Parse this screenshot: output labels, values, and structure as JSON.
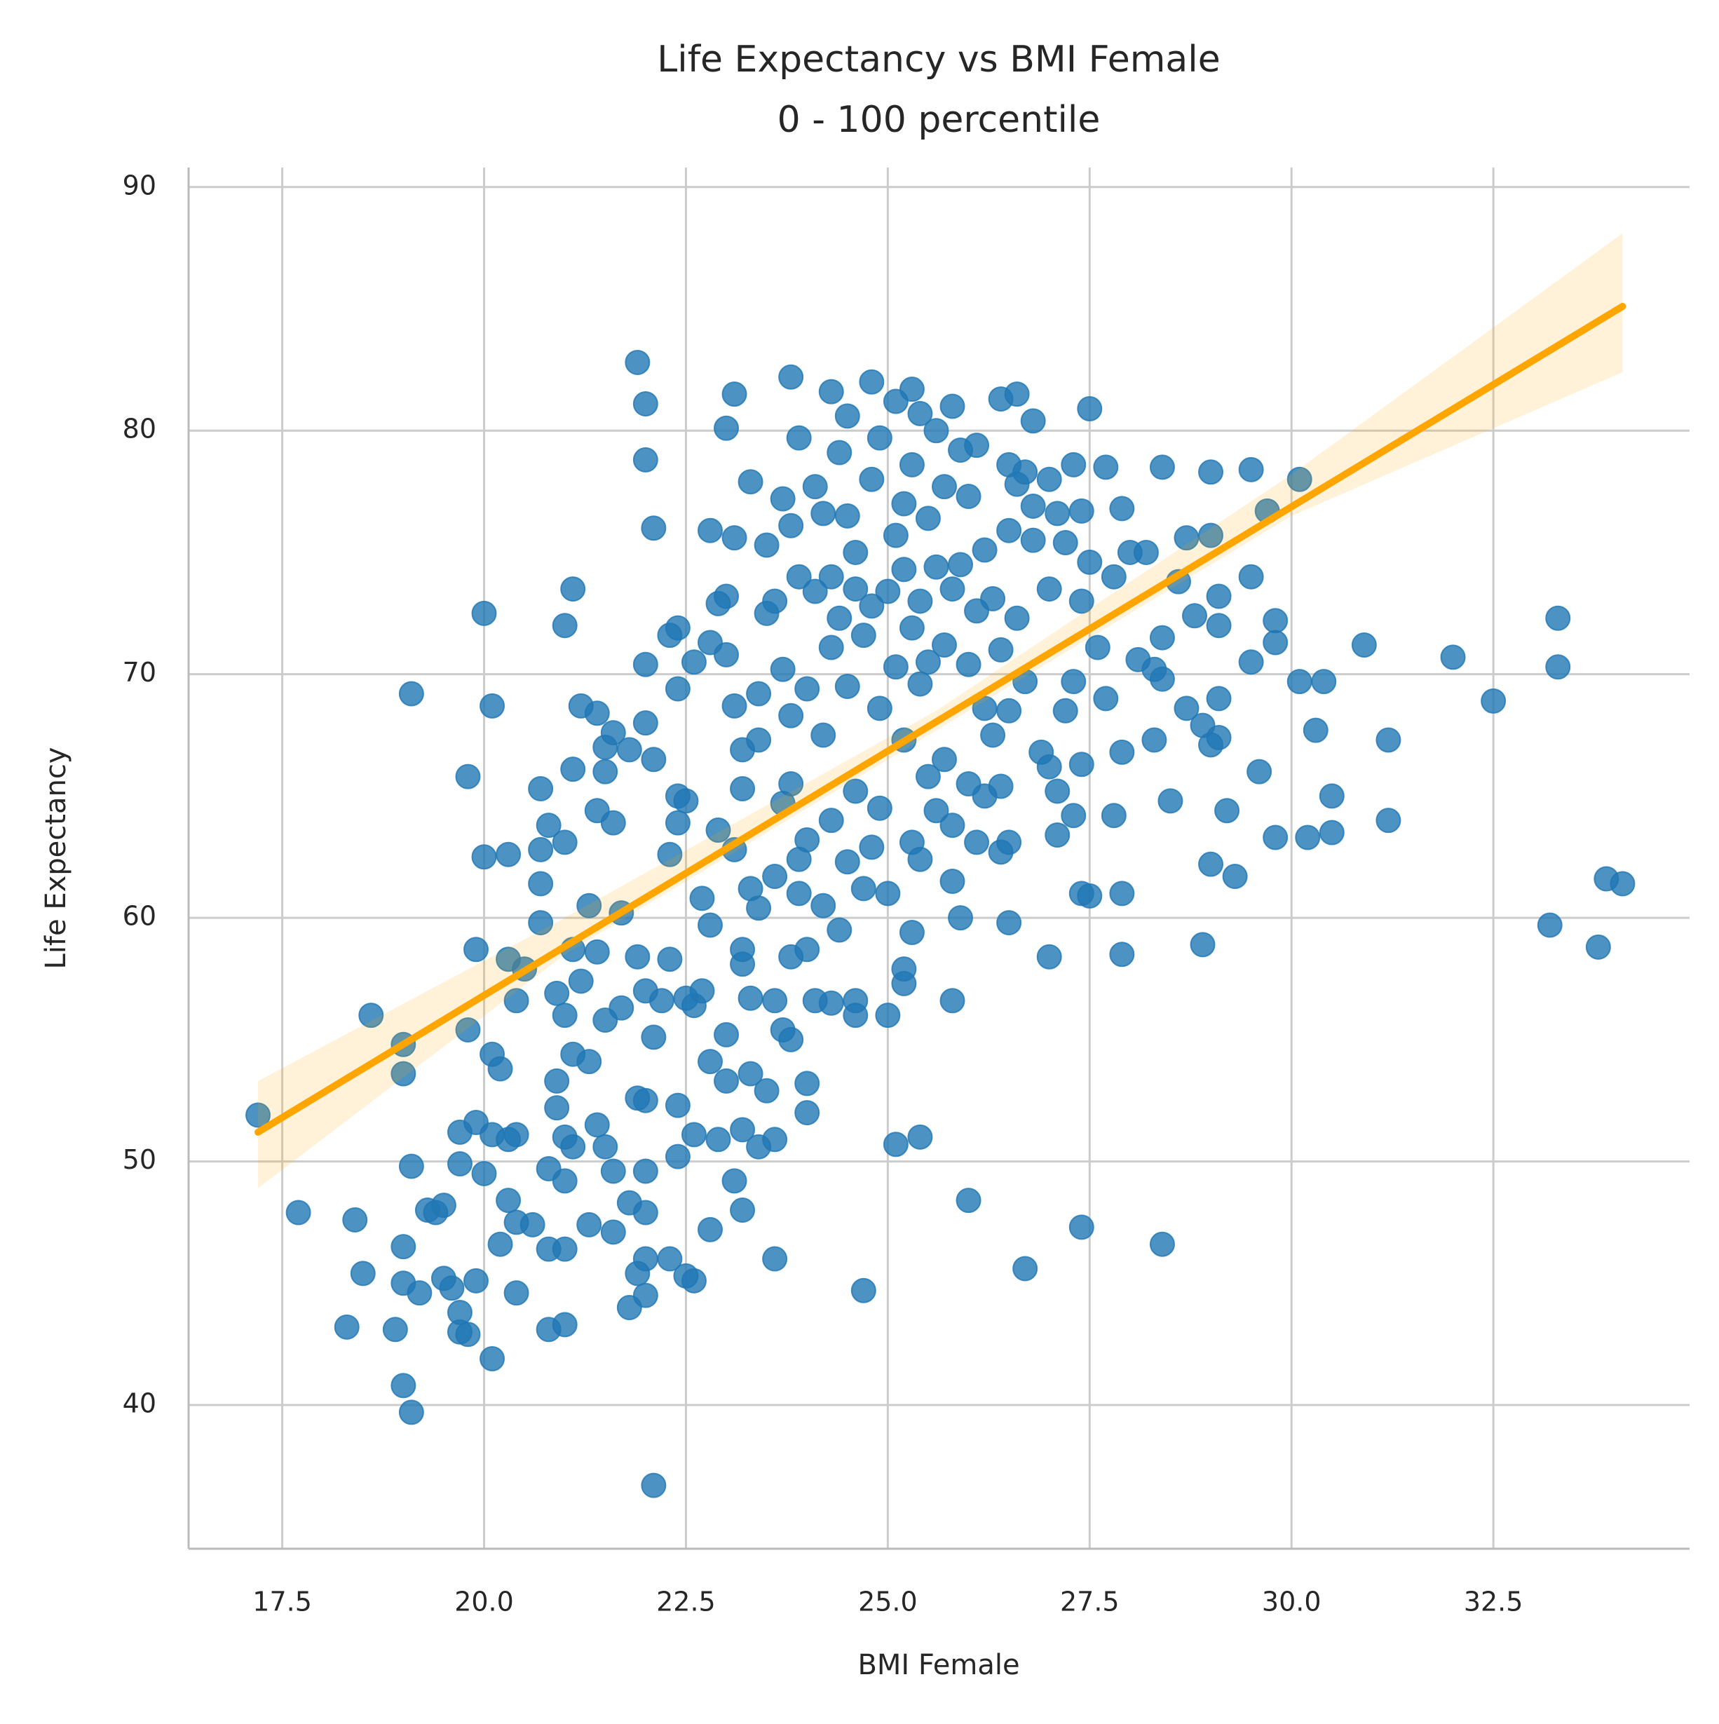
{
  "chart_data": {
    "type": "scatter",
    "title": "Life Expectancy vs BMI Female",
    "subtitle": "0 - 100 percentile",
    "x_label": "BMI Female",
    "y_label": "Life Expectancy",
    "color": "#1f77b4",
    "grid": true,
    "xlim": [
      16.34,
      34.93
    ],
    "ylim": [
      34.1,
      90.8
    ],
    "xticks": [
      17.5,
      {
        "value": 20,
        "label": "20.0"
      },
      22.5,
      {
        "value": 25,
        "label": "25.0"
      },
      27.5,
      {
        "value": 30,
        "label": "30.0"
      },
      32.5
    ],
    "yticks": [
      40,
      50,
      60,
      70,
      80,
      90
    ],
    "x": [
      17.2,
      17.7,
      18.4,
      18.5,
      18.3,
      18.6,
      19.0,
      19.0,
      19.1,
      19.0,
      19.0,
      18.9,
      19.0,
      19.1,
      19.1,
      19.2,
      19.3,
      19.4,
      19.5,
      19.5,
      19.6,
      19.7,
      19.7,
      19.7,
      19.7,
      19.8,
      19.8,
      19.8,
      19.9,
      19.9,
      19.9,
      20.0,
      20.0,
      20.0,
      20.1,
      20.1,
      20.1,
      20.1,
      20.2,
      20.2,
      20.3,
      20.3,
      20.3,
      20.3,
      20.4,
      20.4,
      20.4,
      20.4,
      20.5,
      20.6,
      20.7,
      20.7,
      20.7,
      20.7,
      20.8,
      20.8,
      20.8,
      20.8,
      20.9,
      20.9,
      20.9,
      21.0,
      21.0,
      21.0,
      21.0,
      21.0,
      21.0,
      21.0,
      21.1,
      21.1,
      21.1,
      21.1,
      21.1,
      21.2,
      21.2,
      21.3,
      21.3,
      21.3,
      21.4,
      21.4,
      21.4,
      21.4,
      21.5,
      21.5,
      21.5,
      21.5,
      21.6,
      21.6,
      21.6,
      21.6,
      21.7,
      21.7,
      21.8,
      21.8,
      21.8,
      21.9,
      21.9,
      21.9,
      21.9,
      22.0,
      22.0,
      22.0,
      22.0,
      22.0,
      22.0,
      22.0,
      22.0,
      22.0,
      22.0,
      22.1,
      22.1,
      22.1,
      22.1,
      22.2,
      22.3,
      22.3,
      22.3,
      22.3,
      22.4,
      22.4,
      22.4,
      22.4,
      22.4,
      22.4,
      22.5,
      22.5,
      22.5,
      22.6,
      22.6,
      22.6,
      22.6,
      22.7,
      22.7,
      22.8,
      22.8,
      22.8,
      22.8,
      22.8,
      22.9,
      22.9,
      22.9,
      23.0,
      23.0,
      23.0,
      23.0,
      23.0,
      23.1,
      23.1,
      23.1,
      23.1,
      23.1,
      23.2,
      23.2,
      23.2,
      23.2,
      23.2,
      23.2,
      23.3,
      23.3,
      23.3,
      23.3,
      23.4,
      23.4,
      23.4,
      23.4,
      23.5,
      23.5,
      23.5,
      23.6,
      23.6,
      23.6,
      23.6,
      23.6,
      23.7,
      23.7,
      23.7,
      23.7,
      23.8,
      23.8,
      23.8,
      23.8,
      23.8,
      23.8,
      23.9,
      23.9,
      23.9,
      23.9,
      24.0,
      24.0,
      24.0,
      24.0,
      24.0,
      24.1,
      24.1,
      24.1,
      24.2,
      24.2,
      24.2,
      24.3,
      24.3,
      24.3,
      24.3,
      24.3,
      24.4,
      24.4,
      24.4,
      24.5,
      24.5,
      24.5,
      24.5,
      24.6,
      24.6,
      24.6,
      24.6,
      24.6,
      24.7,
      24.7,
      24.7,
      24.8,
      24.8,
      24.8,
      24.8,
      24.9,
      24.9,
      24.9,
      25.0,
      25.0,
      25.0,
      25.1,
      25.1,
      25.1,
      25.1,
      25.2,
      25.2,
      25.2,
      25.2,
      25.2,
      25.3,
      25.3,
      25.3,
      25.3,
      25.3,
      25.4,
      25.4,
      25.4,
      25.4,
      25.4,
      25.5,
      25.5,
      25.5,
      25.6,
      25.6,
      25.6,
      25.7,
      25.7,
      25.7,
      25.8,
      25.8,
      25.8,
      25.8,
      25.8,
      25.9,
      25.9,
      25.9,
      26.0,
      26.0,
      26.0,
      26.0,
      26.1,
      26.1,
      26.1,
      26.2,
      26.2,
      26.2,
      26.3,
      26.3,
      26.4,
      26.4,
      26.4,
      26.4,
      26.5,
      26.5,
      26.5,
      26.5,
      26.5,
      26.6,
      26.6,
      26.6,
      26.7,
      26.7,
      26.7,
      26.8,
      26.8,
      26.8,
      26.9,
      27.0,
      27.0,
      27.0,
      27.0,
      27.1,
      27.1,
      27.1,
      27.2,
      27.2,
      27.3,
      27.3,
      27.3,
      27.4,
      27.4,
      27.4,
      27.4,
      27.4,
      27.5,
      27.5,
      27.5,
      27.6,
      27.7,
      27.7,
      27.8,
      27.8,
      27.9,
      27.9,
      27.9,
      27.9,
      28.0,
      28.1,
      28.2,
      28.3,
      28.3,
      28.4,
      28.4,
      28.4,
      28.4,
      28.5,
      28.6,
      28.7,
      28.7,
      28.8,
      28.9,
      28.9,
      29.0,
      29.0,
      29.0,
      29.0,
      29.1,
      29.1,
      29.1,
      29.1,
      29.2,
      29.3,
      29.5,
      29.5,
      29.5,
      29.6,
      29.7,
      29.8,
      29.8,
      29.8,
      30.1,
      30.1,
      30.2,
      30.3,
      30.4,
      30.5,
      30.5,
      30.9,
      31.2,
      31.2,
      32.0,
      32.5,
      33.2,
      33.3,
      33.3,
      33.8,
      33.9,
      34.1
    ],
    "y": [
      51.9,
      47.9,
      47.6,
      45.4,
      43.2,
      56.0,
      54.8,
      53.6,
      49.8,
      46.5,
      45.0,
      43.1,
      40.8,
      39.7,
      69.2,
      44.6,
      48.0,
      47.9,
      48.2,
      45.2,
      44.8,
      51.2,
      49.9,
      43.8,
      43.0,
      42.9,
      55.4,
      65.8,
      58.7,
      51.6,
      45.1,
      72.5,
      62.5,
      49.5,
      68.7,
      54.4,
      51.1,
      41.9,
      53.8,
      46.6,
      58.3,
      50.9,
      48.4,
      62.6,
      56.6,
      51.1,
      47.5,
      44.6,
      57.9,
      47.4,
      65.3,
      61.4,
      59.8,
      62.8,
      63.8,
      49.7,
      46.4,
      43.1,
      56.9,
      53.3,
      52.2,
      63.1,
      56.0,
      51.0,
      49.2,
      46.4,
      43.3,
      72.0,
      73.5,
      66.1,
      58.7,
      54.4,
      50.6,
      57.4,
      68.7,
      60.5,
      54.1,
      47.4,
      68.4,
      64.4,
      58.6,
      51.5,
      67.0,
      66.0,
      55.8,
      50.6,
      67.6,
      63.9,
      49.6,
      47.1,
      56.3,
      60.2,
      66.9,
      48.3,
      44.0,
      82.8,
      58.4,
      52.6,
      45.4,
      81.1,
      78.8,
      70.4,
      68.0,
      57.0,
      52.5,
      49.6,
      47.9,
      46.0,
      44.5,
      76.0,
      66.5,
      55.1,
      36.7,
      56.6,
      71.6,
      62.6,
      58.3,
      46.0,
      71.9,
      69.4,
      65.0,
      63.9,
      52.3,
      50.2,
      64.8,
      56.7,
      45.3,
      70.5,
      56.4,
      51.1,
      45.1,
      60.8,
      57.0,
      75.9,
      71.3,
      59.7,
      54.1,
      47.2,
      72.9,
      63.6,
      50.9,
      80.1,
      73.2,
      70.8,
      55.2,
      53.3,
      81.5,
      75.6,
      68.7,
      62.8,
      49.2,
      66.9,
      65.3,
      58.7,
      58.1,
      51.3,
      48.0,
      77.9,
      61.2,
      56.7,
      53.6,
      69.2,
      67.3,
      60.4,
      50.6,
      75.3,
      72.5,
      52.9,
      73.0,
      61.7,
      56.6,
      50.9,
      46.0,
      77.2,
      70.2,
      64.7,
      55.4,
      82.2,
      76.1,
      68.3,
      65.5,
      58.4,
      55.0,
      79.7,
      74.0,
      62.4,
      61.0,
      69.4,
      63.2,
      58.7,
      53.2,
      52.0,
      77.7,
      73.4,
      56.6,
      76.6,
      67.5,
      60.5,
      81.6,
      74.0,
      71.1,
      64.0,
      56.5,
      79.1,
      72.3,
      59.5,
      80.6,
      76.5,
      69.5,
      62.3,
      75.0,
      73.5,
      65.2,
      56.6,
      56.0,
      71.6,
      61.2,
      44.7,
      82.0,
      78.0,
      72.8,
      62.9,
      79.7,
      68.6,
      64.5,
      73.4,
      61.0,
      56.0,
      81.2,
      75.7,
      70.3,
      50.7,
      77.0,
      74.3,
      67.3,
      57.9,
      57.3,
      81.7,
      78.6,
      71.9,
      63.1,
      59.4,
      80.7,
      73.0,
      69.6,
      62.4,
      51.0,
      76.4,
      70.5,
      65.8,
      80.0,
      74.4,
      64.4,
      77.7,
      71.2,
      66.5,
      81.0,
      73.5,
      63.8,
      61.5,
      56.6,
      79.2,
      74.5,
      60.0,
      77.3,
      70.4,
      65.5,
      48.4,
      79.4,
      72.6,
      63.1,
      75.1,
      68.6,
      65.0,
      73.1,
      67.5,
      81.3,
      71.0,
      65.4,
      62.7,
      78.6,
      75.9,
      68.5,
      63.1,
      59.8,
      81.5,
      77.8,
      72.3,
      78.3,
      69.7,
      45.6,
      80.4,
      76.9,
      75.5,
      66.8,
      78.0,
      73.5,
      66.2,
      58.4,
      76.6,
      65.2,
      63.4,
      75.4,
      68.5,
      78.6,
      69.7,
      64.2,
      76.7,
      73.0,
      66.3,
      61.0,
      47.3,
      80.9,
      74.6,
      60.9,
      71.1,
      78.5,
      69.0,
      74.0,
      64.2,
      76.8,
      66.8,
      61.0,
      58.5,
      75.0,
      70.6,
      75.0,
      70.2,
      67.3,
      78.5,
      71.5,
      69.8,
      46.6,
      64.8,
      73.8,
      75.6,
      68.6,
      72.4,
      67.9,
      58.9,
      78.3,
      75.7,
      67.1,
      62.2,
      73.2,
      72.0,
      69.0,
      67.4,
      64.4,
      61.7,
      78.4,
      74.0,
      70.5,
      66.0,
      76.7,
      72.2,
      71.3,
      63.3,
      78.0,
      69.7,
      63.3,
      67.7,
      69.7,
      65.0,
      63.5,
      71.2,
      67.3,
      64.0,
      70.7,
      68.9,
      59.7,
      72.3,
      70.3,
      58.8,
      61.6,
      61.4
    ],
    "regression": {
      "x": [
        17.2,
        34.1
      ],
      "y": [
        51.2,
        85.1
      ],
      "color": "#ffa500"
    },
    "ci_band": {
      "x": [
        17.2,
        21.0,
        25.6,
        30.0,
        34.1
      ],
      "lower": [
        48.9,
        58.5,
        67.7,
        76.5,
        82.4
      ],
      "upper": [
        53.3,
        60.0,
        68.5,
        78.2,
        88.1
      ],
      "color": "#ffa500"
    }
  }
}
